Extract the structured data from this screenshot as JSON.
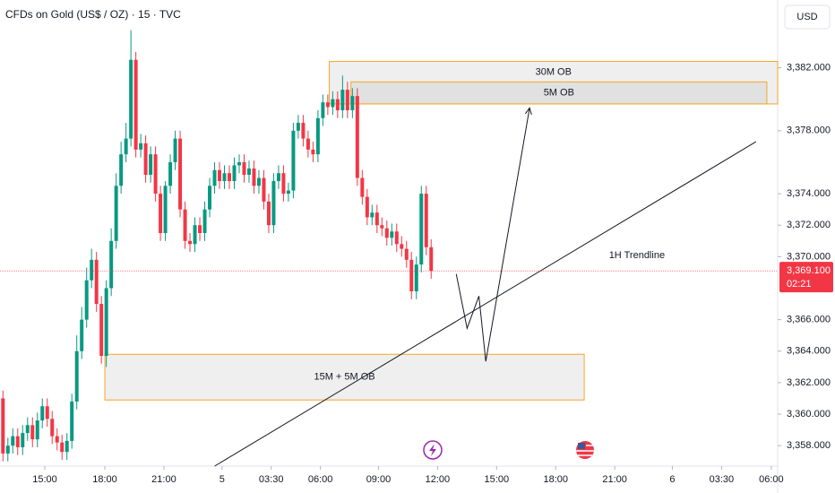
{
  "chart_data": {
    "type": "candlestick",
    "title": "CFDs on Gold (US$ / OZ) · 15 · TVC",
    "currency": "USD",
    "up_color": "#089981",
    "down_color": "#f23645",
    "open": [
      3361.0,
      3357.5,
      3358.0,
      3358.6,
      3357.9,
      3358.8,
      3359.3,
      3358.4,
      3359.6,
      3360.5,
      3359.7,
      3358.6,
      3358.2,
      3357.6,
      3358.3,
      3360.8,
      3364.0,
      3366.0,
      3368.5,
      3369.8,
      3367.0,
      3363.7,
      3368.0,
      3371.0,
      3374.5,
      3376.5,
      3377.5,
      3382.5,
      3376.8,
      3377.2,
      3375.2,
      3376.5,
      3374.0,
      3371.5,
      3374.5,
      3376.0,
      3377.5,
      3373.0,
      3371.0,
      3370.8,
      3372.0,
      3371.5,
      3373.0,
      3374.5,
      3375.5,
      3374.8,
      3375.3,
      3374.8,
      3375.8,
      3376.0,
      3375.2,
      3375.6,
      3374.5,
      3375.0,
      3373.5,
      3372.0,
      3374.8,
      3375.3,
      3374.0,
      3374.2,
      3378.0,
      3378.5,
      3377.5,
      3376.8,
      3376.5,
      3378.8,
      3379.8,
      3379.5,
      3380.0,
      3379.3,
      3380.6,
      3379.3,
      3380.2,
      3375.0,
      3373.8,
      3372.5,
      3372.8,
      3372.0,
      3371.8,
      3371.2,
      3371.6,
      3370.8,
      3370.5,
      3369.8,
      3367.8,
      3369.5,
      3374.0,
      3370.6
    ],
    "high": [
      3361.5,
      3358.5,
      3359.1,
      3359.1,
      3359.3,
      3359.8,
      3359.8,
      3360.1,
      3361.0,
      3361.0,
      3360.2,
      3359.1,
      3358.7,
      3358.8,
      3361.3,
      3365.0,
      3366.8,
      3369.3,
      3370.5,
      3370.3,
      3367.5,
      3368.5,
      3371.8,
      3375.3,
      3377.3,
      3378.5,
      3384.5,
      3383.0,
      3377.8,
      3377.7,
      3377.0,
      3377.0,
      3374.5,
      3374.8,
      3376.5,
      3378.0,
      3378.0,
      3373.5,
      3371.5,
      3372.5,
      3372.5,
      3373.5,
      3375.0,
      3376.0,
      3376.0,
      3375.8,
      3375.8,
      3376.3,
      3376.5,
      3376.5,
      3376.1,
      3376.1,
      3375.5,
      3375.5,
      3374.0,
      3375.3,
      3375.8,
      3375.8,
      3374.7,
      3378.5,
      3379.0,
      3379.0,
      3378.0,
      3377.3,
      3379.3,
      3380.3,
      3380.3,
      3380.5,
      3380.5,
      3381.5,
      3381.1,
      3380.7,
      3380.7,
      3375.5,
      3374.3,
      3373.3,
      3373.3,
      3372.5,
      3372.3,
      3372.1,
      3372.1,
      3371.3,
      3371.0,
      3370.3,
      3370.0,
      3374.5,
      3374.5,
      3371.1
    ],
    "low": [
      3357.0,
      3357.0,
      3357.5,
      3357.4,
      3357.4,
      3358.3,
      3357.9,
      3357.9,
      3359.1,
      3359.2,
      3358.1,
      3357.7,
      3357.1,
      3357.1,
      3357.8,
      3360.3,
      3363.5,
      3365.5,
      3368.0,
      3366.5,
      3363.2,
      3363.0,
      3367.5,
      3370.5,
      3374.0,
      3376.0,
      3377.0,
      3376.3,
      3376.3,
      3374.7,
      3374.7,
      3373.5,
      3371.0,
      3371.0,
      3374.0,
      3375.5,
      3372.5,
      3370.5,
      3370.3,
      3370.3,
      3371.0,
      3371.0,
      3372.5,
      3374.0,
      3374.3,
      3374.3,
      3374.3,
      3374.3,
      3375.3,
      3374.7,
      3374.7,
      3374.0,
      3374.0,
      3373.0,
      3371.5,
      3371.5,
      3374.3,
      3373.5,
      3373.5,
      3373.7,
      3377.5,
      3377.0,
      3376.3,
      3376.0,
      3376.0,
      3378.3,
      3379.0,
      3379.0,
      3378.8,
      3378.8,
      3378.8,
      3378.8,
      3374.5,
      3373.3,
      3372.0,
      3372.0,
      3371.5,
      3371.3,
      3370.7,
      3370.7,
      3370.3,
      3370.0,
      3369.3,
      3367.3,
      3367.3,
      3369.0,
      3370.1,
      3368.6
    ],
    "close": [
      3357.5,
      3358.0,
      3358.6,
      3357.9,
      3358.8,
      3359.3,
      3358.4,
      3359.6,
      3360.5,
      3359.7,
      3358.6,
      3358.2,
      3357.6,
      3358.3,
      3360.8,
      3364.0,
      3366.0,
      3368.5,
      3369.8,
      3367.0,
      3363.7,
      3368.0,
      3371.0,
      3374.5,
      3376.5,
      3377.5,
      3382.5,
      3376.8,
      3377.2,
      3375.2,
      3376.5,
      3374.0,
      3371.5,
      3374.5,
      3376.0,
      3377.5,
      3373.0,
      3371.0,
      3370.8,
      3372.0,
      3371.5,
      3373.0,
      3374.5,
      3375.5,
      3374.8,
      3375.3,
      3374.8,
      3375.8,
      3376.0,
      3375.2,
      3375.6,
      3374.5,
      3375.0,
      3373.5,
      3372.0,
      3374.8,
      3375.3,
      3374.0,
      3374.2,
      3378.0,
      3378.5,
      3377.5,
      3376.8,
      3376.5,
      3378.8,
      3379.8,
      3379.5,
      3380.0,
      3379.3,
      3380.6,
      3379.3,
      3380.2,
      3375.0,
      3373.8,
      3372.5,
      3372.8,
      3372.0,
      3371.8,
      3371.2,
      3371.6,
      3370.8,
      3370.5,
      3369.8,
      3367.8,
      3369.5,
      3374.0,
      3370.6,
      3369.1
    ],
    "xlim": [
      -0.6,
      157.4
    ],
    "ylim": [
      3356.7,
      3386.3
    ],
    "xticks": [
      {
        "value": 8.5,
        "label": "15:00"
      },
      {
        "value": 20.7,
        "label": "18:00"
      },
      {
        "value": 32.7,
        "label": "21:00"
      },
      {
        "value": 44.5,
        "label": "5"
      },
      {
        "value": 54.5,
        "label": "03:30"
      },
      {
        "value": 64.5,
        "label": "06:00"
      },
      {
        "value": 76.3,
        "label": "09:00"
      },
      {
        "value": 88.3,
        "label": "12:00"
      },
      {
        "value": 100.3,
        "label": "15:00"
      },
      {
        "value": 112.3,
        "label": "18:00"
      },
      {
        "value": 124.3,
        "label": "21:00"
      },
      {
        "value": 136.0,
        "label": "6"
      },
      {
        "value": 146.0,
        "label": "03:30"
      },
      {
        "value": 156.1,
        "label": "06:00"
      }
    ],
    "yticks": [
      {
        "value": 3382,
        "label": "3,382.000"
      },
      {
        "value": 3378,
        "label": "3,378.000"
      },
      {
        "value": 3374,
        "label": "3,374.000"
      },
      {
        "value": 3372,
        "label": "3,372.000"
      },
      {
        "value": 3370,
        "label": "3,370.000"
      },
      {
        "value": 3366,
        "label": "3,366.000"
      },
      {
        "value": 3364,
        "label": "3,364.000"
      },
      {
        "value": 3362,
        "label": "3,362.000"
      },
      {
        "value": 3360,
        "label": "3,360.000"
      },
      {
        "value": 3358,
        "label": "3,358.000"
      }
    ],
    "last_price": {
      "value": 3369.1,
      "label": "3,369.100",
      "countdown": "02:21"
    },
    "zones": [
      {
        "label": "30M OB",
        "x": [
          66.3,
          157.4
        ],
        "y": [
          3379.7,
          3382.4
        ]
      },
      {
        "label": "5M OB",
        "x": [
          70.7,
          155.2
        ],
        "y": [
          3379.7,
          3381.1
        ]
      },
      {
        "label": "15M + 5M OB",
        "x": [
          20.7,
          118.1
        ],
        "y": [
          3360.9,
          3363.8
        ]
      }
    ],
    "trendline": {
      "label": "1H Trendline",
      "x": [
        43.0,
        153.0
      ],
      "y": [
        3356.7,
        3377.3
      ]
    },
    "projection": {
      "x": [
        92.1,
        94.3,
        96.7,
        98.1,
        107.0
      ],
      "y": [
        3368.9,
        3365.45,
        3367.5,
        3363.35,
        3379.45
      ]
    }
  }
}
